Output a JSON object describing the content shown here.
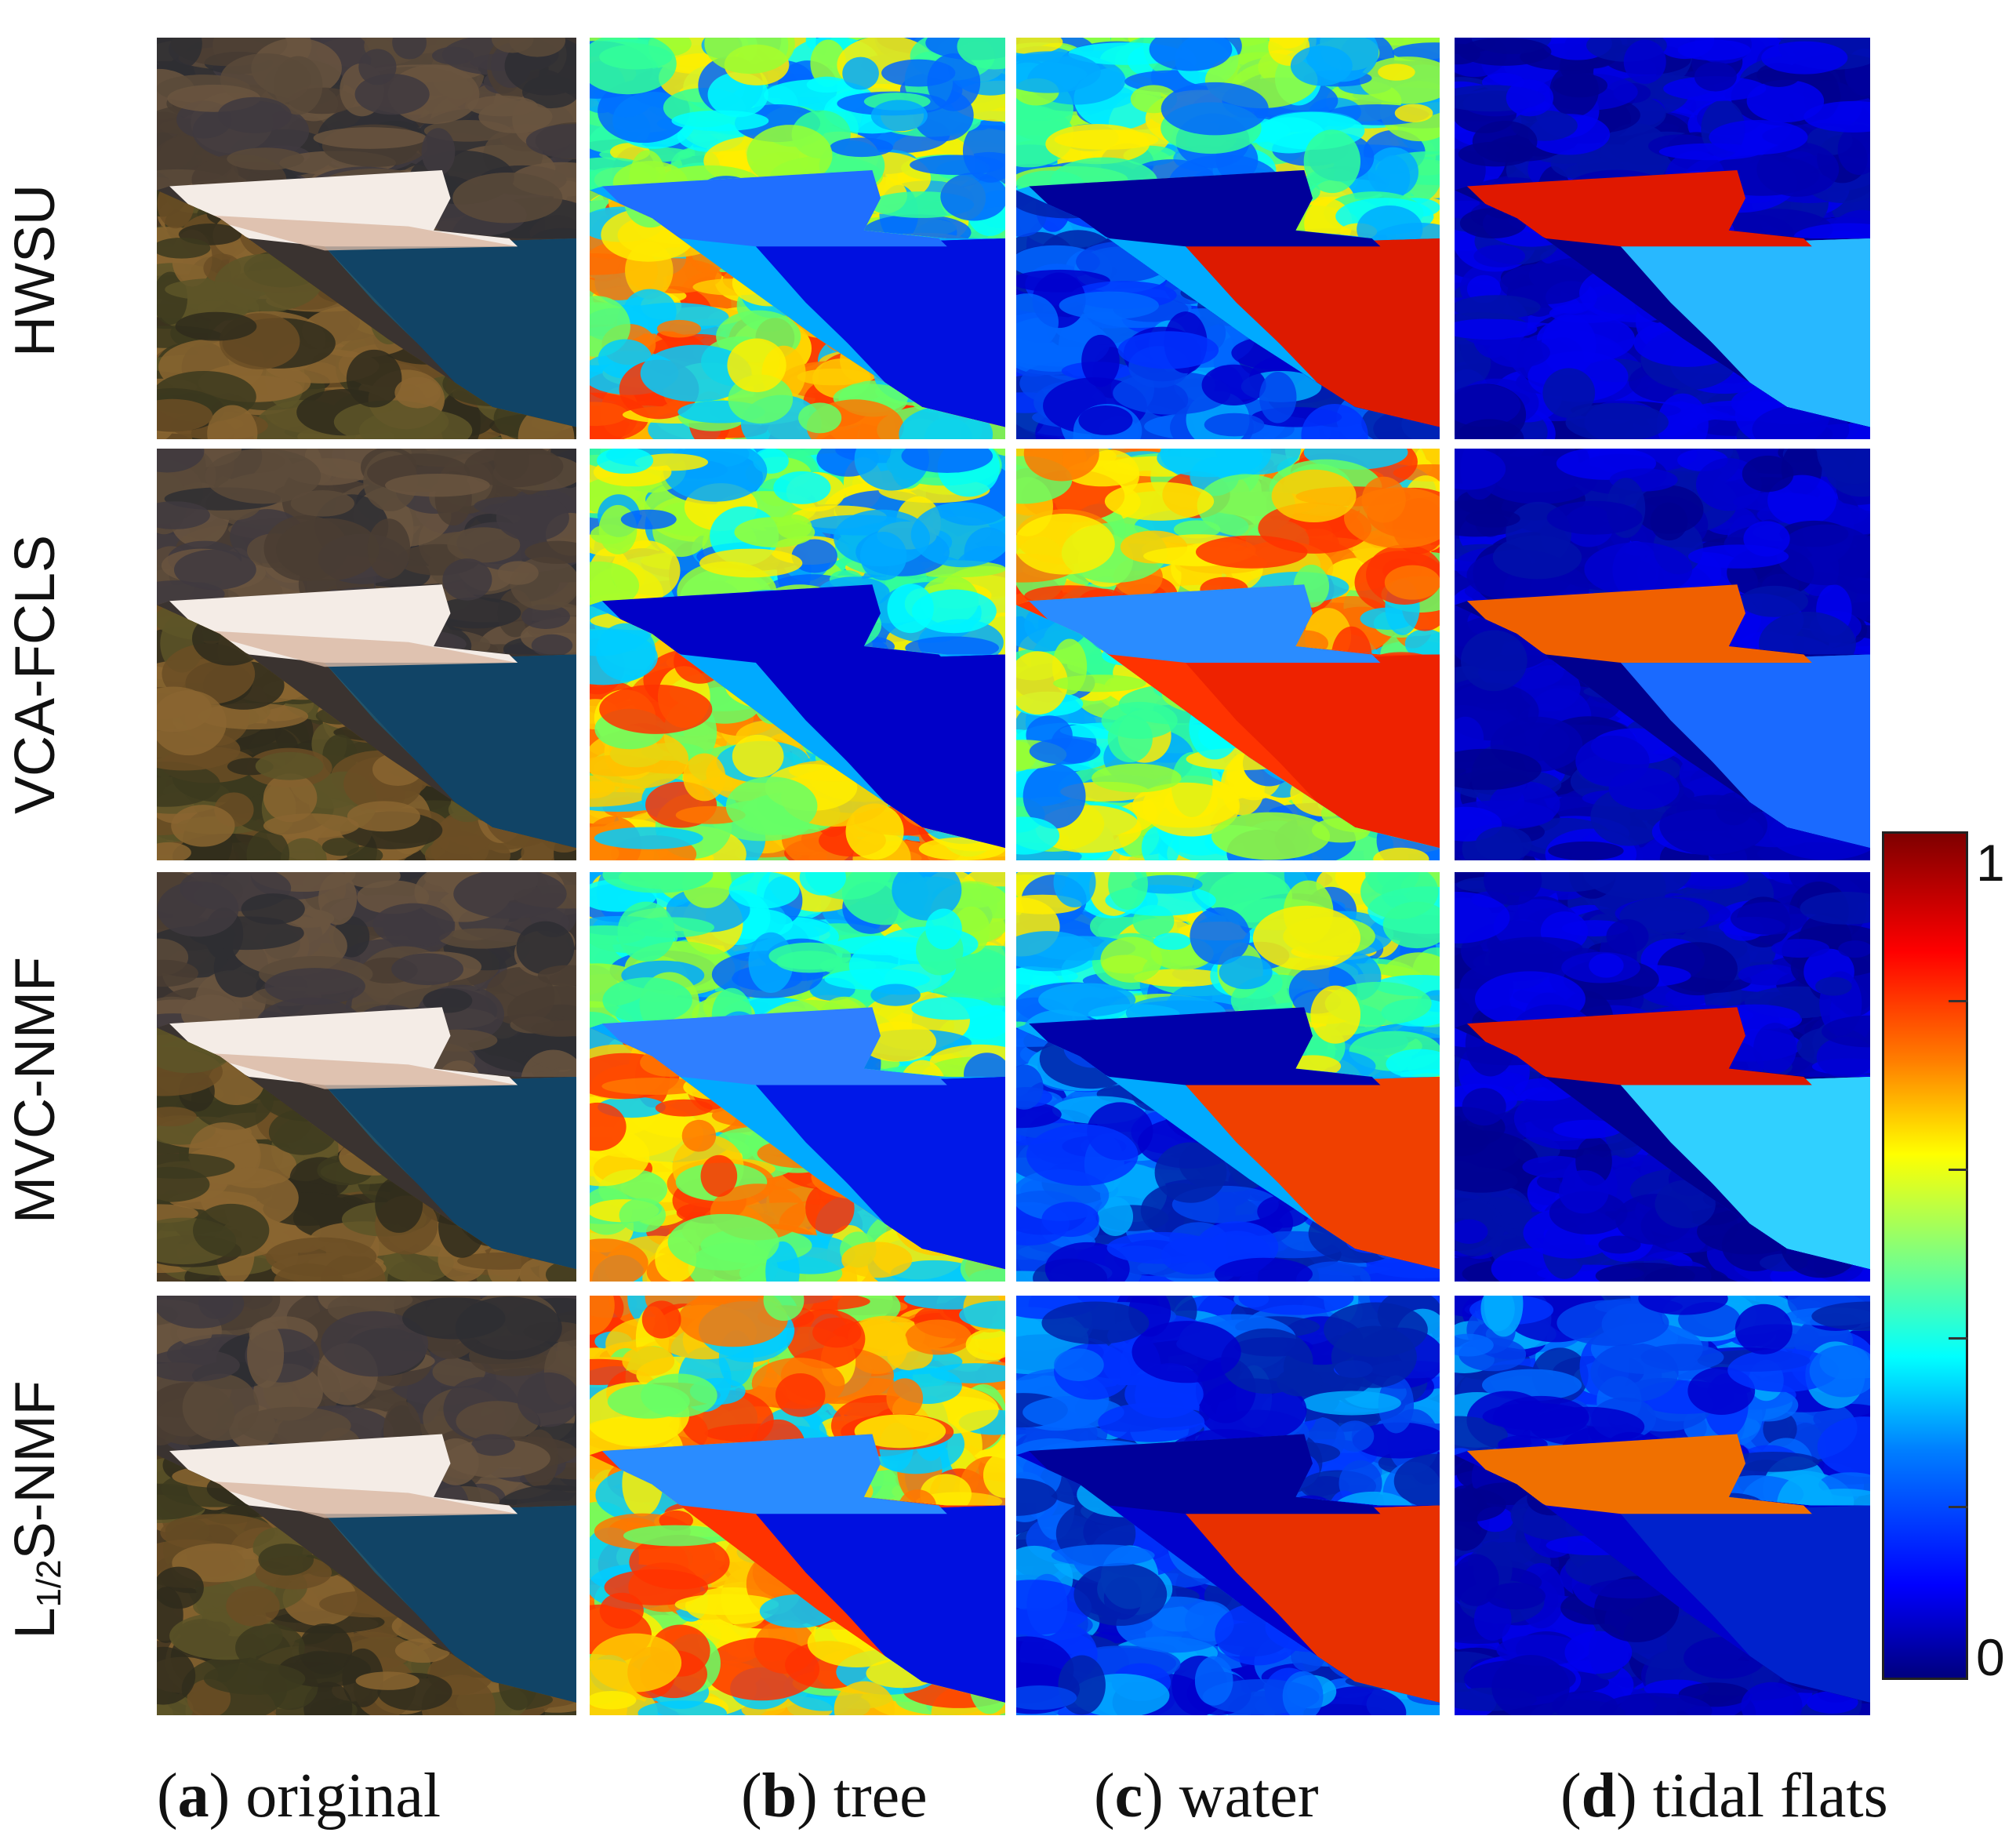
{
  "rows": [
    {
      "label": "HWSU",
      "sub": "",
      "after": ""
    },
    {
      "label": "VCA-FCLS",
      "sub": "",
      "after": ""
    },
    {
      "label": "MVC-NMF",
      "sub": "",
      "after": ""
    },
    {
      "label": "L",
      "sub": "1/2",
      "after": "S-NMF"
    }
  ],
  "columns": [
    {
      "letter": "a",
      "text": " original"
    },
    {
      "letter": "b",
      "text": " tree"
    },
    {
      "letter": "c",
      "text": " water"
    },
    {
      "letter": "d",
      "text": " tidal flats"
    }
  ],
  "colorbar": {
    "max_label": "1",
    "min_label": "0"
  },
  "colors": {
    "jet_low": "#00007f",
    "jet_high": "#7f0000"
  }
}
